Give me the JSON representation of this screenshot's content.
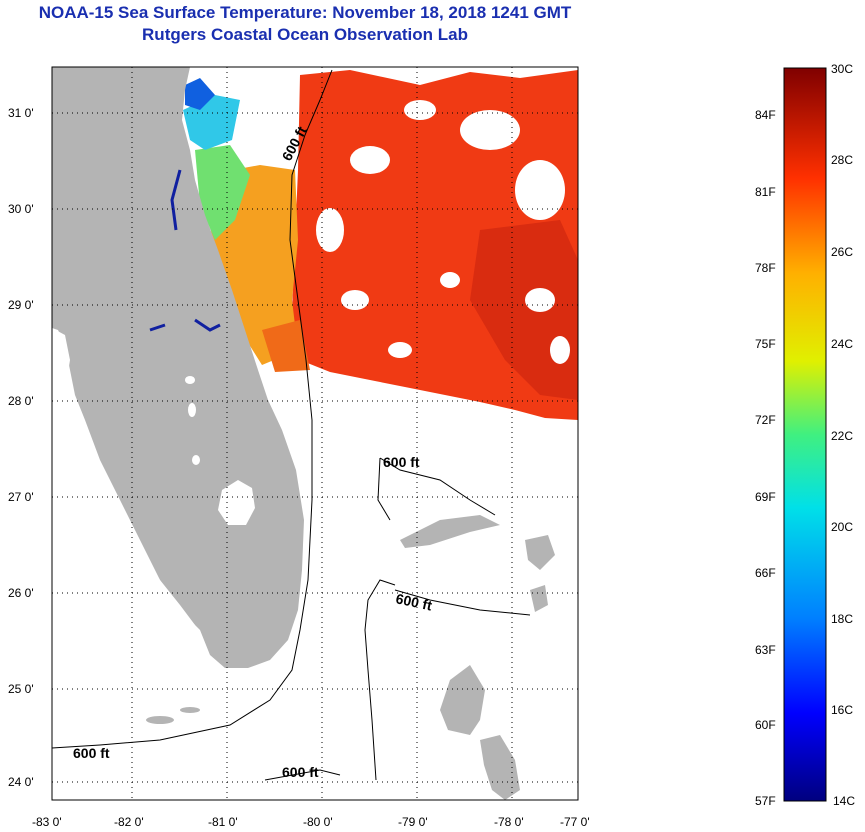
{
  "title_line1": "NOAA-15 Sea Surface Temperature:  November 18, 2018 1241 GMT",
  "title_line2": "Rutgers Coastal Ocean Observation Lab",
  "lon_ticks": [
    "-83 0'",
    "-82 0'",
    "-81 0'",
    "-80 0'",
    "-79 0'",
    "-78 0'",
    "-77 0'"
  ],
  "lat_ticks": [
    "31 0'",
    "30 0'",
    "29 0'",
    "28 0'",
    "27 0'",
    "26 0'",
    "25 0'",
    "24 0'"
  ],
  "contour_labels": [
    "600 ft",
    "600 ft",
    "600 ft",
    "600 ft",
    "600 ft"
  ],
  "colorbar": {
    "celsius": [
      "30C",
      "28C",
      "26C",
      "24C",
      "22C",
      "20C",
      "18C",
      "16C",
      "14C"
    ],
    "fahrenheit": [
      "84F",
      "81F",
      "78F",
      "75F",
      "72F",
      "69F",
      "66F",
      "63F",
      "60F",
      "57F"
    ]
  },
  "colors": {
    "title": "#1a2fb0",
    "land": "#b4b4b4",
    "warm_water": "#f03a14",
    "mid_water": "#f5a020",
    "cool_water": "#30c8e8"
  }
}
